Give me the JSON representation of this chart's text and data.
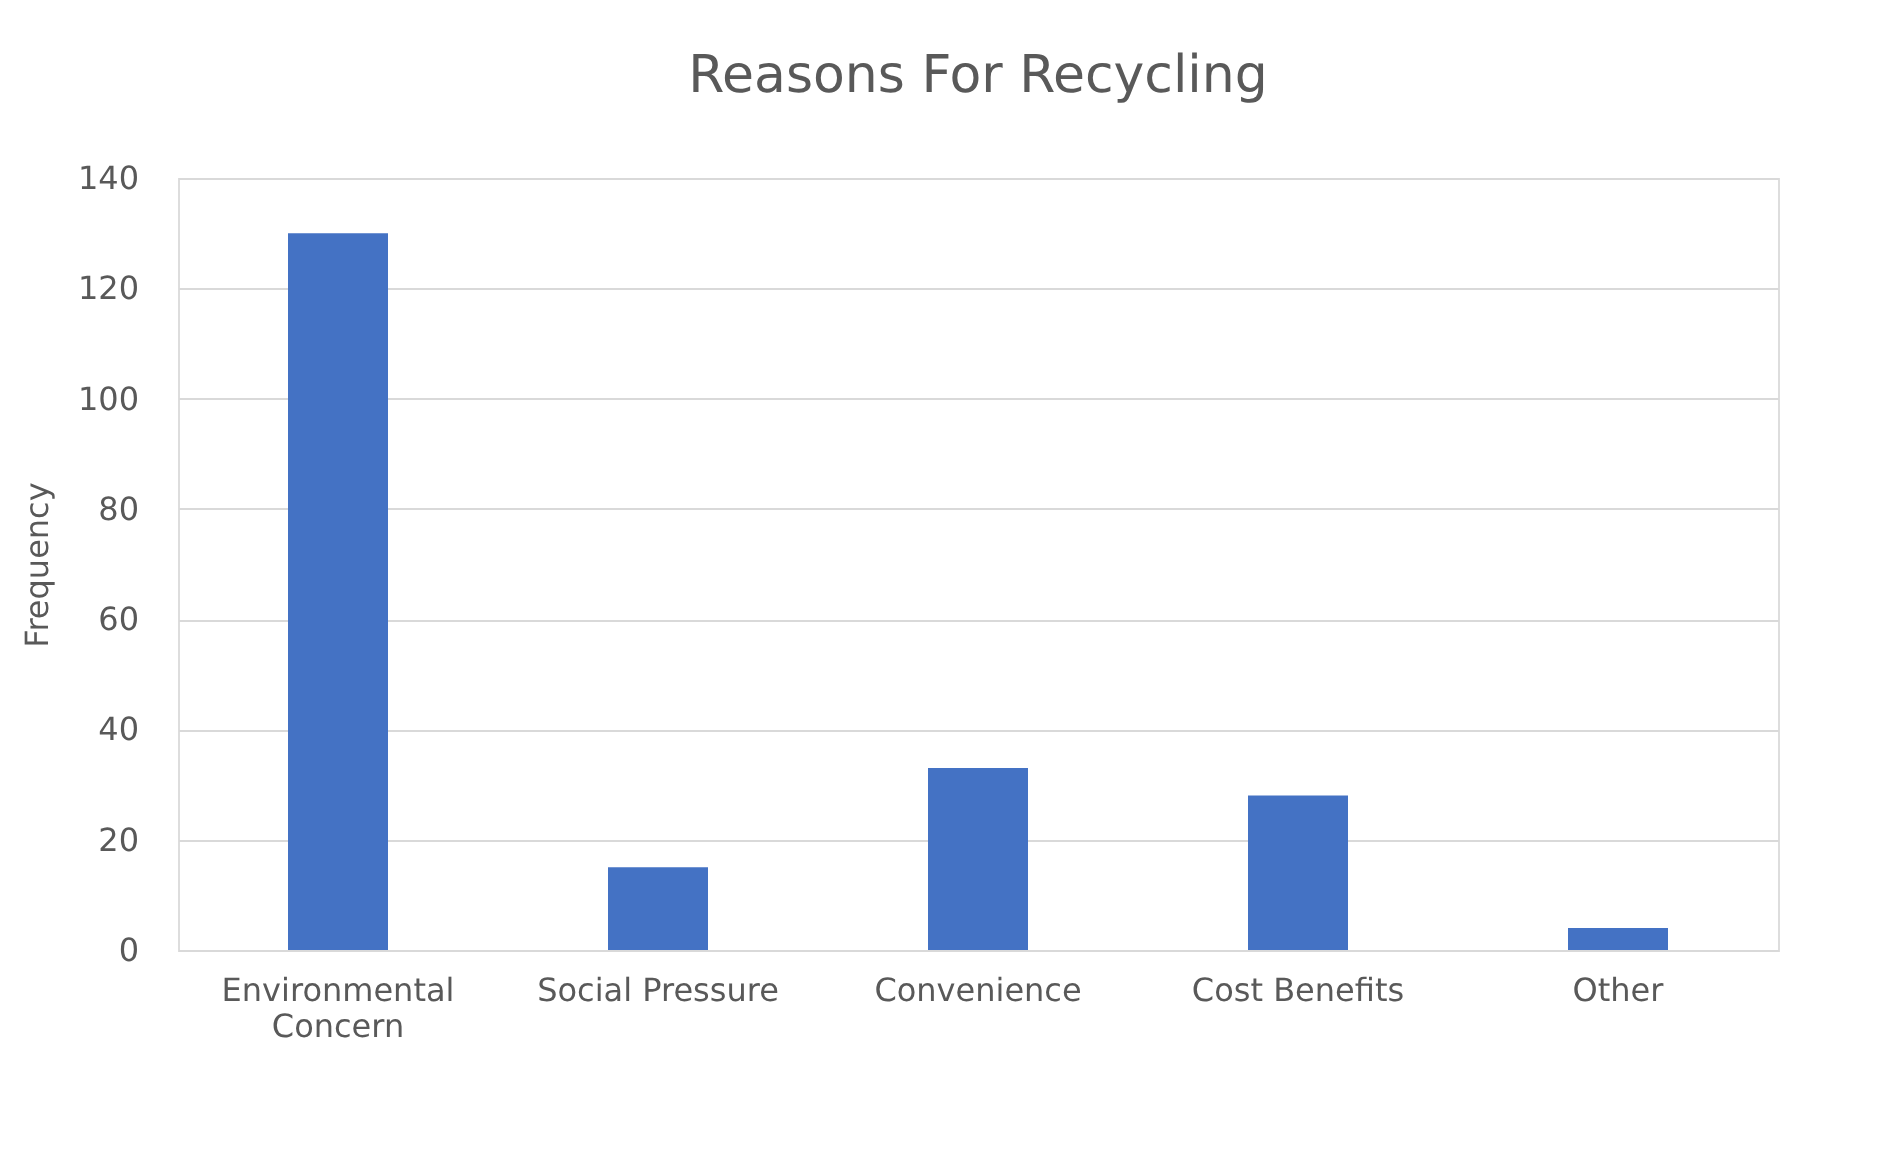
{
  "chart_data": {
    "type": "bar",
    "title": "Reasons For Recycling",
    "ylabel": "Frequency",
    "categories": [
      "Environmental Concern",
      "Social Pressure",
      "Convenience",
      "Cost Benefits",
      "Other"
    ],
    "values": [
      130,
      15,
      33,
      28,
      4
    ],
    "color": "#4472c4",
    "ylim": [
      0,
      140
    ],
    "yticks": [
      0,
      20,
      40,
      60,
      80,
      100,
      120,
      140
    ],
    "grid": "y"
  }
}
